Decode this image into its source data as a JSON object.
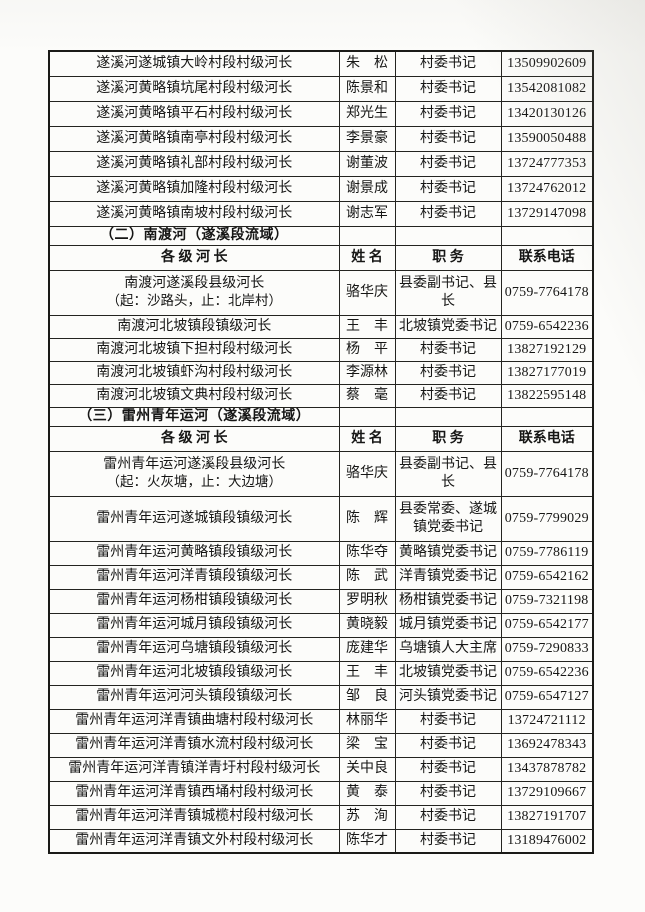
{
  "document": {
    "kind": "river-chief-contact-table",
    "text_color": "#161615",
    "paper_color": "#fcfcfa",
    "border_color": "#242420"
  },
  "table": {
    "headers": {
      "chief": "各 级 河 长",
      "name": "姓 名",
      "title": "职 务",
      "phone": "联系电话"
    },
    "sections": [
      {
        "label": "",
        "show_header": false,
        "rows": [
          {
            "chief": "遂溪河遂城镇大岭村段村级河长",
            "name": "朱　松",
            "title": "村委书记",
            "phone": "13509902609"
          },
          {
            "chief": "遂溪河黄略镇坑尾村段村级河长",
            "name": "陈景和",
            "title": "村委书记",
            "phone": "13542081082"
          },
          {
            "chief": "遂溪河黄略镇平石村段村级河长",
            "name": "郑光生",
            "title": "村委书记",
            "phone": "13420130126"
          },
          {
            "chief": "遂溪河黄略镇南亭村段村级河长",
            "name": "李景豪",
            "title": "村委书记",
            "phone": "13590050488"
          },
          {
            "chief": "遂溪河黄略镇礼部村段村级河长",
            "name": "谢董波",
            "title": "村委书记",
            "phone": "13724777353"
          },
          {
            "chief": "遂溪河黄略镇加隆村段村级河长",
            "name": "谢景成",
            "title": "村委书记",
            "phone": "13724762012"
          },
          {
            "chief": "遂溪河黄略镇南坡村段村级河长",
            "name": "谢志军",
            "title": "村委书记",
            "phone": "13729147098"
          }
        ]
      },
      {
        "label": "（二）南渡河（遂溪段流域）",
        "show_header": true,
        "rows": [
          {
            "chief": "南渡河遂溪段县级河长",
            "chief2": "（起：沙路头，止：北岸村）",
            "name": "骆华庆",
            "title": "县委副书记、县长",
            "phone": "0759-7764178",
            "tall": true
          },
          {
            "chief": "南渡河北坡镇段镇级河长",
            "name": "王　丰",
            "title": "北坡镇党委书记",
            "phone": "0759-6542236"
          },
          {
            "chief": "南渡河北坡镇下担村段村级河长",
            "name": "杨　平",
            "title": "村委书记",
            "phone": "13827192129"
          },
          {
            "chief": "南渡河北坡镇虾沟村段村级河长",
            "name": "李源林",
            "title": "村委书记",
            "phone": "13827177019"
          },
          {
            "chief": "南渡河北坡镇文典村段村级河长",
            "name": "蔡　毫",
            "title": "村委书记",
            "phone": "13822595148"
          }
        ]
      },
      {
        "label": "（三）雷州青年运河（遂溪段流域）",
        "show_header": true,
        "rows": [
          {
            "chief": "雷州青年运河遂溪段县级河长",
            "chief2": "（起：火灰塘，止：大边塘）",
            "name": "骆华庆",
            "title": "县委副书记、县长",
            "phone": "0759-7764178",
            "tall": true
          },
          {
            "chief": "雷州青年运河遂城镇段镇级河长",
            "name": "陈　辉",
            "title": "县委常委、遂城镇党委书记",
            "phone": "0759-7799029",
            "tall": true
          },
          {
            "chief": "雷州青年运河黄略镇段镇级河长",
            "name": "陈华夺",
            "title": "黄略镇党委书记",
            "phone": "0759-7786119"
          },
          {
            "chief": "雷州青年运河洋青镇段镇级河长",
            "name": "陈　武",
            "title": "洋青镇党委书记",
            "phone": "0759-6542162"
          },
          {
            "chief": "雷州青年运河杨柑镇段镇级河长",
            "name": "罗明秋",
            "title": "杨柑镇党委书记",
            "phone": "0759-7321198"
          },
          {
            "chief": "雷州青年运河城月镇段镇级河长",
            "name": "黄晓毅",
            "title": "城月镇党委书记",
            "phone": "0759-6542177"
          },
          {
            "chief": "雷州青年运河乌塘镇段镇级河长",
            "name": "庞建华",
            "title": "乌塘镇人大主席",
            "phone": "0759-7290833"
          },
          {
            "chief": "雷州青年运河北坡镇段镇级河长",
            "name": "王　丰",
            "title": "北坡镇党委书记",
            "phone": "0759-6542236"
          },
          {
            "chief": "雷州青年运河河头镇段镇级河长",
            "name": "邹　良",
            "title": "河头镇党委书记",
            "phone": "0759-6547127"
          },
          {
            "chief": "雷州青年运河洋青镇曲塘村段村级河长",
            "name": "林丽华",
            "title": "村委书记",
            "phone": "13724721112"
          },
          {
            "chief": "雷州青年运河洋青镇水流村段村级河长",
            "name": "梁　宝",
            "title": "村委书记",
            "phone": "13692478343"
          },
          {
            "chief": "雷州青年运河洋青镇洋青圩村段村级河长",
            "name": "关中良",
            "title": "村委书记",
            "phone": "13437878782"
          },
          {
            "chief": "雷州青年运河洋青镇西埇村段村级河长",
            "name": "黄　泰",
            "title": "村委书记",
            "phone": "13729109667"
          },
          {
            "chief": "雷州青年运河洋青镇城榄村段村级河长",
            "name": "苏　洵",
            "title": "村委书记",
            "phone": "13827191707"
          },
          {
            "chief": "雷州青年运河洋青镇文外村段村级河长",
            "name": "陈华才",
            "title": "村委书记",
            "phone": "13189476002"
          }
        ]
      }
    ]
  }
}
